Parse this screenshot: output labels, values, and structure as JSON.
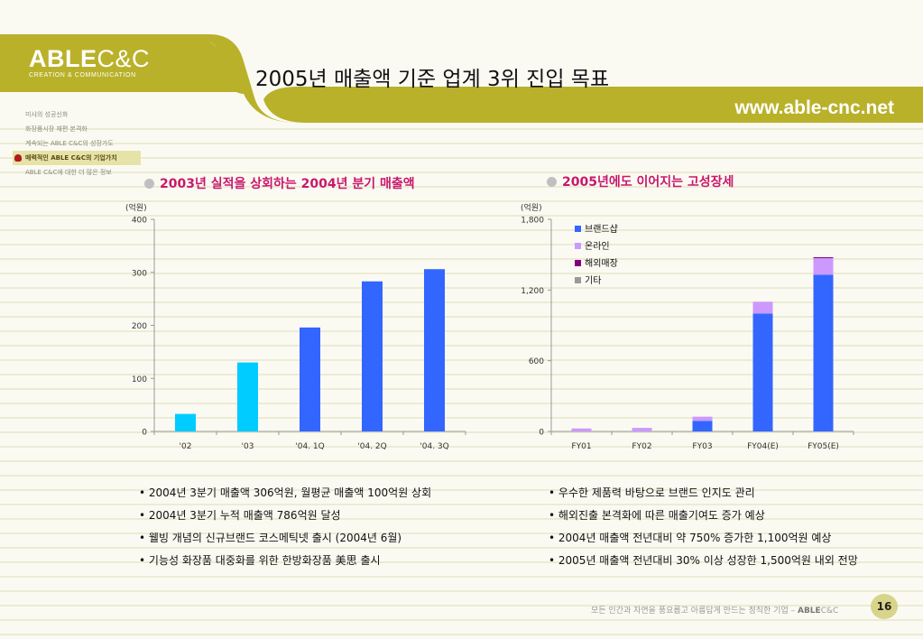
{
  "header": {
    "logo_bold": "ABLE",
    "logo_thin": "C&C",
    "logo_sub": "CREATION & COMMUNICATION",
    "title": "2005년 매출액 기준 업계 3위 진입 목표",
    "website": "www.able-cnc.net"
  },
  "colors": {
    "banner_olive": "#b9b12a",
    "accent_pink": "#c8186d",
    "bar_cyan": "#00ccff",
    "bar_blue": "#3366ff"
  },
  "sidebar": {
    "items": [
      {
        "label": "미샤의 성공신화",
        "active": false
      },
      {
        "label": "화장품시장 재편 본격화",
        "active": false
      },
      {
        "label": "계속되는 ABLE C&C의 성장가도",
        "active": false
      },
      {
        "label": "매력적인 ABLE C&C의 기업가치",
        "active": true
      },
      {
        "label": "ABLE C&C에 대한 더 많은 정보",
        "active": false
      }
    ]
  },
  "left_panel": {
    "title": "2003년 실적을 상회하는 2004년 분기 매출액",
    "unit": "(억원)",
    "notes": [
      "2004년 3분기 매출액 306억원, 월평균 매출액 100억원 상회",
      "2004년 3분기 누적 매출액 786억원 달성",
      "웰빙 개념의 신규브랜드 코스메틱넷 출시 (2004년 6월)",
      "기능성 화장품 대중화를 위한 한방화장품 美思 출시"
    ]
  },
  "right_panel": {
    "title": "2005년에도 이어지는 고성장세",
    "unit": "(억원)",
    "notes": [
      "우수한 제품력 바탕으로 브랜드 인지도 관리",
      "해외진출 본격화에 따른 매출기여도 증가 예상",
      "2004년 매출액 전년대비 약 750% 증가한 1,100억원 예상",
      "2005년 매출액 전년대비 30% 이상 성장한 1,500억원 내외 전망"
    ]
  },
  "chart_data": [
    {
      "type": "bar",
      "categories": [
        "'02",
        "'03",
        "'04. 1Q",
        "'04. 2Q",
        "'04. 3Q"
      ],
      "values": [
        33,
        130,
        196,
        283,
        306
      ],
      "bar_colors": [
        "#00ccff",
        "#00ccff",
        "#3366ff",
        "#3366ff",
        "#3366ff"
      ],
      "ylim": [
        0,
        400
      ],
      "yticks": [
        0,
        100,
        200,
        300,
        400
      ],
      "ytick_labels": [
        "0",
        "100",
        "200",
        "300",
        "400"
      ],
      "grid": false
    },
    {
      "type": "bar",
      "stacked": true,
      "categories": [
        "FY01",
        "FY02",
        "FY03",
        "FY04(E)",
        "FY05(E)"
      ],
      "series": [
        {
          "name": "브랜드샵",
          "color": "#3366ff",
          "values": [
            0,
            0,
            90,
            1000,
            1330
          ]
        },
        {
          "name": "온라인",
          "color": "#cc99ff",
          "values": [
            25,
            30,
            35,
            100,
            140
          ]
        },
        {
          "name": "해외매장",
          "color": "#800080",
          "values": [
            0,
            0,
            0,
            0,
            8
          ]
        },
        {
          "name": "기타",
          "color": "#999999",
          "values": [
            0,
            0,
            0,
            0,
            0
          ]
        }
      ],
      "ylim": [
        0,
        1800
      ],
      "yticks": [
        0,
        600,
        1200,
        1800
      ],
      "ytick_labels": [
        "0",
        "600",
        "1,200",
        "1,800"
      ],
      "legend": "top-left",
      "grid": false
    }
  ],
  "footer": {
    "slogan": "모든 인간과 자연을 풍요롭고 아름답게 만드는 정직한 기업 –",
    "brand_bold": "ABLE",
    "brand_thin": "C&C",
    "page": "16"
  }
}
